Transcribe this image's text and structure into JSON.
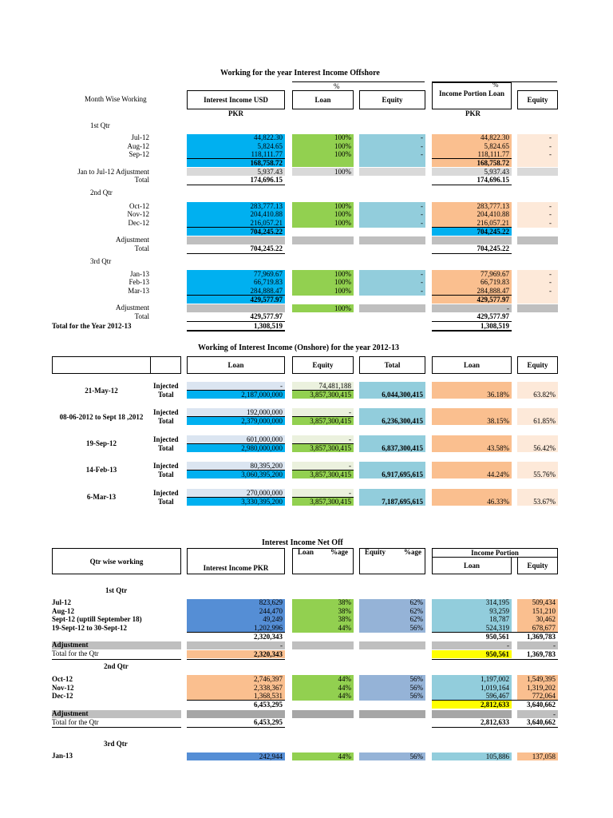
{
  "s1": {
    "title": "Working for the year Interest Income Offshore",
    "pct1": "%",
    "pct2": "%",
    "month_label": "Month Wise Working",
    "h_usd": "Interest Income USD",
    "h_loan": "Loan",
    "h_equity": "Equity",
    "h_portion": "Income Portion Loan",
    "h_equity2": "Equity",
    "pkr1": "PKR",
    "pkr2": "PKR",
    "total_year_label": "Total for the Year 2012-13",
    "total_year_usd": "1,308,519",
    "total_year_loan": "1,308,519",
    "q1": {
      "label": "1st Qtr",
      "rows": [
        {
          "m": "Jul-12",
          "usd": "44,822.30",
          "loan": "100%",
          "eq": "-",
          "pl": "44,822.30",
          "pe": "-"
        },
        {
          "m": "Aug-12",
          "usd": "5,824.65",
          "loan": "100%",
          "eq": "-",
          "pl": "5,824.65",
          "pe": "-"
        },
        {
          "m": "Sep-12",
          "usd": "118,111.77",
          "loan": "100%",
          "eq": "-",
          "pl": "118,111.77",
          "pe": "-"
        }
      ],
      "sum_usd": "168,758.72",
      "sum_pl": "168,758.72",
      "adj_label": "Jan to Jul-12 Adjustment",
      "adj_usd": "5,937.43",
      "adj_loan": "100%",
      "adj_pl": "5,937.43",
      "total_label": "Total",
      "total_usd": "174,696.15",
      "total_pl": "174,696.15"
    },
    "q2": {
      "label": "2nd Qtr",
      "rows": [
        {
          "m": "Oct-12",
          "usd": "283,777.13",
          "loan": "100%",
          "eq": "-",
          "pl": "283,777.13",
          "pe": "-"
        },
        {
          "m": "Nov-12",
          "usd": "204,410.88",
          "loan": "100%",
          "eq": "-",
          "pl": "204,410.88",
          "pe": "-"
        },
        {
          "m": "Dec-12",
          "usd": "216,057.21",
          "loan": "100%",
          "eq": "-",
          "pl": "216,057.21",
          "pe": "-"
        }
      ],
      "sum_usd": "704,245.22",
      "sum_pl": "704,245.22",
      "adj_label": "Adjustment",
      "total_label": "Total",
      "total_usd": "704,245.22",
      "total_pl": "704,245.22"
    },
    "q3": {
      "label": "3rd Qtr",
      "rows": [
        {
          "m": "Jan-13",
          "usd": "77,969.67",
          "loan": "100%",
          "eq": "-",
          "pl": "77,969.67",
          "pe": "-"
        },
        {
          "m": "Feb-13",
          "usd": "66,719.83",
          "loan": "100%",
          "eq": "-",
          "pl": "66,719.83",
          "pe": "-"
        },
        {
          "m": "Mar-13",
          "usd": "284,888.47",
          "loan": "100%",
          "eq": "-",
          "pl": "284,888.47",
          "pe": "-"
        }
      ],
      "sum_usd": "429,577.97",
      "sum_pl": "429,577.97",
      "adj_label": "Adjustment",
      "adj_loan": "100%",
      "adj_pl": "-",
      "total_label": "Total",
      "total_usd": "429,577.97",
      "total_pl": "429,577.97"
    }
  },
  "s2": {
    "title": "Working of Interest Income (Onshore) for the year 2012-13",
    "h_loan": "Loan",
    "h_equity": "Equity",
    "h_total": "Total",
    "h_loan2": "Loan",
    "h_equity2": "Equity",
    "groups": [
      {
        "date": "21-May-12",
        "inj_label": "Injected",
        "tot_label": "Total",
        "inj_loan": "-",
        "inj_eq": "74,481,188",
        "tot_loan": "2,187,000,000",
        "tot_eq": "3,857,300,415",
        "total": "6,044,300,415",
        "loan_pct": "36.18%",
        "eq_pct": "63.82%"
      },
      {
        "date": "08-06-2012 to Sept 18 ,2012",
        "inj_label": "Injected",
        "tot_label": "Total",
        "inj_loan": "192,000,000",
        "inj_eq": "-",
        "tot_loan": "2,379,000,000",
        "tot_eq": "3,857,300,415",
        "total": "6,236,300,415",
        "loan_pct": "38.15%",
        "eq_pct": "61.85%"
      },
      {
        "date": "19-Sep-12",
        "inj_label": "Injected",
        "tot_label": "Total",
        "inj_loan": "601,000,000",
        "inj_eq": "-",
        "tot_loan": "2,980,000,000",
        "tot_eq": "3,857,300,415",
        "total": "6,837,300,415",
        "loan_pct": "43.58%",
        "eq_pct": "56.42%"
      },
      {
        "date": "14-Feb-13",
        "inj_label": "Injected",
        "tot_label": "Total",
        "inj_loan": "80,395,200",
        "inj_eq": "-",
        "tot_loan": "3,060,395,200",
        "tot_eq": "3,857,300,415",
        "total": "6,917,695,615",
        "loan_pct": "44.24%",
        "eq_pct": "55.76%"
      },
      {
        "date": "6-Mar-13",
        "inj_label": "Injected",
        "tot_label": "Total",
        "inj_loan": "270,000,000",
        "inj_eq": "-",
        "tot_loan": "3,330,395,200",
        "tot_eq": "3,857,300,415",
        "total": "7,187,695,615",
        "loan_pct": "46.33%",
        "eq_pct": "53.67%"
      }
    ]
  },
  "s3": {
    "title": "Interest Income Net Off",
    "qtr_label": "Qtr wise working",
    "h_income": "Interest Income PKR",
    "h_loan": "Loan",
    "h_age1": "%age",
    "h_equity": "Equity",
    "h_age2": "%age",
    "h_portion": "Income Portion",
    "h_loan2": "Loan",
    "h_equity2": "Equity",
    "q1": {
      "label": "1st Qtr",
      "rows": [
        {
          "m": "Jul-12",
          "inc": "823,629",
          "lp": "38%",
          "ep": "62%",
          "pl": "314,195",
          "pe": "509,434"
        },
        {
          "m": "Aug-12",
          "inc": "244,470",
          "lp": "38%",
          "ep": "62%",
          "pl": "93,259",
          "pe": "151,210"
        },
        {
          "m": "Sept-12 (uptill September 18)",
          "inc": "49,249",
          "lp": "38%",
          "ep": "62%",
          "pl": "18,787",
          "pe": "30,462"
        },
        {
          "m": "19-Sept-12 to 30-Sept-12",
          "inc": "1,202,996",
          "lp": "44%",
          "ep": "56%",
          "pl": "524,319",
          "pe": "678,677"
        }
      ],
      "sum_inc": "2,320,343",
      "sum_pl": "950,561",
      "sum_pe": "1,369,783",
      "adj_label": "Adjustment",
      "adj_inc": "-",
      "adj_pl": "-",
      "adj_pe": "-",
      "total_label": "Total for the Qtr",
      "total_inc": "2,320,343",
      "total_pl": "950,561",
      "total_pe": "1,369,783"
    },
    "q2": {
      "label": "2nd Qtr",
      "rows": [
        {
          "m": "Oct-12",
          "inc": "2,746,397",
          "lp": "44%",
          "ep": "56%",
          "pl": "1,197,002",
          "pe": "1,549,395"
        },
        {
          "m": "Nov-12",
          "inc": "2,338,367",
          "lp": "44%",
          "ep": "56%",
          "pl": "1,019,164",
          "pe": "1,319,202"
        },
        {
          "m": "Dec-12",
          "inc": "1,368,531",
          "lp": "44%",
          "ep": "56%",
          "pl": "596,467",
          "pe": "772,064"
        }
      ],
      "sum_inc": "6,453,295",
      "sum_pl": "2,812,633",
      "sum_pe": "3,640,662",
      "adj_label": "Adjustment",
      "adj_pe": "-",
      "total_label": "Total for the Qtr",
      "total_inc": "6,453,295",
      "total_pl": "2,812,633",
      "total_pe": "3,640,662"
    },
    "q3": {
      "label": "3rd Qtr",
      "rows": [
        {
          "m": "Jan-13",
          "inc": "242,944",
          "lp": "44%",
          "ep": "56%",
          "pl": "105,886",
          "pe": "137,058"
        }
      ]
    }
  }
}
